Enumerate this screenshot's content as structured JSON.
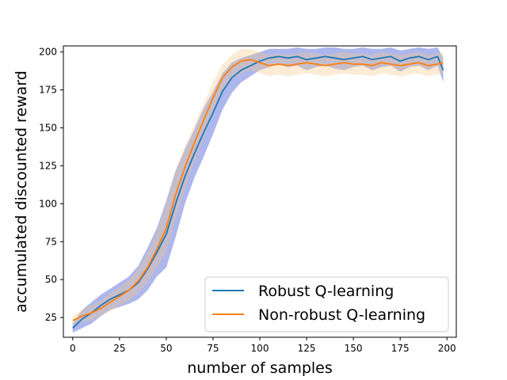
{
  "chart_data": {
    "type": "line",
    "title": "",
    "xlabel": "number of samples",
    "ylabel": "accumulated discounted reward",
    "xlim": [
      -5,
      205
    ],
    "ylim": [
      12,
      204
    ],
    "xticks": [
      0,
      25,
      50,
      75,
      100,
      125,
      150,
      175,
      200
    ],
    "yticks": [
      25,
      50,
      75,
      100,
      125,
      150,
      175,
      200
    ],
    "grid": false,
    "legend_position": "bottom-right",
    "shaded_bands": true,
    "series": [
      {
        "name": "Robust Q-learning",
        "color": "#1f77b4",
        "band_color": "#4a5fd6",
        "x": [
          0,
          5,
          10,
          15,
          20,
          25,
          30,
          35,
          40,
          45,
          50,
          55,
          60,
          65,
          70,
          75,
          80,
          85,
          90,
          95,
          100,
          105,
          110,
          115,
          120,
          125,
          130,
          135,
          140,
          145,
          150,
          155,
          160,
          165,
          170,
          175,
          180,
          185,
          190,
          195,
          198
        ],
        "y": [
          18,
          24,
          28,
          33,
          37,
          40,
          43,
          48,
          57,
          68,
          80,
          100,
          118,
          133,
          147,
          160,
          174,
          183,
          188,
          191,
          194,
          196,
          197,
          196,
          197,
          195,
          196,
          197,
          196,
          195,
          196,
          197,
          195,
          196,
          197,
          194,
          196,
          197,
          195,
          197,
          188
        ],
        "band_halfwidth": [
          3,
          6,
          7,
          7,
          7,
          8,
          9,
          11,
          14,
          16,
          22,
          22,
          18,
          16,
          16,
          14,
          12,
          10,
          8,
          7,
          6,
          6,
          5,
          6,
          6,
          7,
          6,
          6,
          7,
          7,
          6,
          6,
          7,
          6,
          6,
          7,
          6,
          6,
          7,
          6,
          8
        ]
      },
      {
        "name": "Non-robust Q-learning",
        "color": "#ff7f0e",
        "band_color": "#f5c98a",
        "x": [
          0,
          5,
          10,
          15,
          20,
          25,
          30,
          35,
          40,
          45,
          50,
          55,
          60,
          65,
          70,
          75,
          80,
          85,
          90,
          95,
          100,
          105,
          110,
          115,
          120,
          125,
          130,
          135,
          140,
          145,
          150,
          155,
          160,
          165,
          170,
          175,
          180,
          185,
          190,
          195,
          198
        ],
        "y": [
          23,
          26,
          28,
          31,
          35,
          39,
          43,
          49,
          58,
          70,
          84,
          106,
          124,
          140,
          155,
          170,
          183,
          190,
          194,
          195,
          193,
          191,
          192,
          191,
          192,
          193,
          192,
          191,
          192,
          193,
          192,
          192,
          191,
          193,
          192,
          191,
          192,
          193,
          191,
          192,
          193
        ],
        "band_halfwidth": [
          3,
          4,
          5,
          5,
          6,
          6,
          7,
          8,
          10,
          12,
          16,
          16,
          14,
          12,
          11,
          10,
          9,
          8,
          8,
          7,
          7,
          7,
          7,
          7,
          7,
          7,
          7,
          7,
          7,
          7,
          7,
          7,
          7,
          7,
          7,
          7,
          7,
          7,
          7,
          7,
          7
        ]
      }
    ]
  }
}
